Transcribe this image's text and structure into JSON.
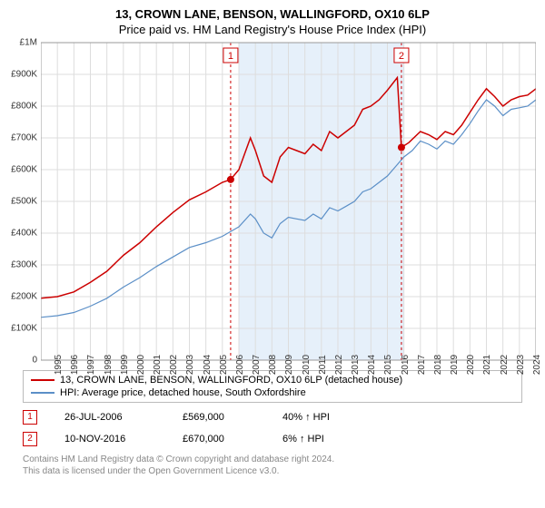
{
  "title_line1": "13, CROWN LANE, BENSON, WALLINGFORD, OX10 6LP",
  "title_line2": "Price paid vs. HM Land Registry's House Price Index (HPI)",
  "chart": {
    "type": "line",
    "background_color": "#ffffff",
    "grid_color": "#dddddd",
    "shade_color": "#e6f0fa",
    "shade_range_years": [
      2007,
      2017
    ],
    "xlim_years": [
      1995,
      2025
    ],
    "ylim": [
      0,
      1000000
    ],
    "ytick_step": 100000,
    "ytick_labels": [
      "0",
      "£100K",
      "£200K",
      "£300K",
      "£400K",
      "£500K",
      "£600K",
      "£700K",
      "£800K",
      "£900K",
      "£1M"
    ],
    "xtick_years": [
      1995,
      1996,
      1997,
      1998,
      1999,
      2000,
      2001,
      2002,
      2003,
      2004,
      2005,
      2006,
      2007,
      2008,
      2009,
      2010,
      2011,
      2012,
      2013,
      2014,
      2015,
      2016,
      2017,
      2018,
      2019,
      2020,
      2021,
      2022,
      2023,
      2024,
      2025
    ],
    "series": [
      {
        "name": "property",
        "label": "13, CROWN LANE, BENSON, WALLINGFORD, OX10 6LP (detached house)",
        "color": "#cc0000",
        "line_width": 1.5,
        "data": [
          [
            1995,
            195000
          ],
          [
            1996,
            200000
          ],
          [
            1997,
            215000
          ],
          [
            1998,
            245000
          ],
          [
            1999,
            280000
          ],
          [
            2000,
            330000
          ],
          [
            2001,
            370000
          ],
          [
            2002,
            420000
          ],
          [
            2003,
            465000
          ],
          [
            2004,
            505000
          ],
          [
            2005,
            530000
          ],
          [
            2006,
            560000
          ],
          [
            2006.5,
            569000
          ],
          [
            2007,
            600000
          ],
          [
            2007.7,
            700000
          ],
          [
            2008,
            660000
          ],
          [
            2008.5,
            580000
          ],
          [
            2009,
            560000
          ],
          [
            2009.5,
            640000
          ],
          [
            2010,
            670000
          ],
          [
            2010.5,
            660000
          ],
          [
            2011,
            650000
          ],
          [
            2011.5,
            680000
          ],
          [
            2012,
            660000
          ],
          [
            2012.5,
            720000
          ],
          [
            2013,
            700000
          ],
          [
            2013.5,
            720000
          ],
          [
            2014,
            740000
          ],
          [
            2014.5,
            790000
          ],
          [
            2015,
            800000
          ],
          [
            2015.5,
            820000
          ],
          [
            2016,
            850000
          ],
          [
            2016.6,
            890000
          ],
          [
            2016.85,
            670000
          ],
          [
            2017.3,
            685000
          ],
          [
            2018,
            720000
          ],
          [
            2018.5,
            710000
          ],
          [
            2019,
            695000
          ],
          [
            2019.5,
            720000
          ],
          [
            2020,
            710000
          ],
          [
            2020.5,
            740000
          ],
          [
            2021,
            780000
          ],
          [
            2021.5,
            820000
          ],
          [
            2022,
            855000
          ],
          [
            2022.5,
            830000
          ],
          [
            2023,
            800000
          ],
          [
            2023.5,
            820000
          ],
          [
            2024,
            830000
          ],
          [
            2024.5,
            835000
          ],
          [
            2025,
            855000
          ]
        ]
      },
      {
        "name": "hpi",
        "label": "HPI: Average price, detached house, South Oxfordshire",
        "color": "#5b8fc7",
        "line_width": 1.2,
        "data": [
          [
            1995,
            135000
          ],
          [
            1996,
            140000
          ],
          [
            1997,
            150000
          ],
          [
            1998,
            170000
          ],
          [
            1999,
            195000
          ],
          [
            2000,
            230000
          ],
          [
            2001,
            260000
          ],
          [
            2002,
            295000
          ],
          [
            2003,
            325000
          ],
          [
            2004,
            355000
          ],
          [
            2005,
            370000
          ],
          [
            2006,
            390000
          ],
          [
            2007,
            420000
          ],
          [
            2007.7,
            460000
          ],
          [
            2008,
            445000
          ],
          [
            2008.5,
            400000
          ],
          [
            2009,
            385000
          ],
          [
            2009.5,
            430000
          ],
          [
            2010,
            450000
          ],
          [
            2010.5,
            445000
          ],
          [
            2011,
            440000
          ],
          [
            2011.5,
            460000
          ],
          [
            2012,
            445000
          ],
          [
            2012.5,
            480000
          ],
          [
            2013,
            470000
          ],
          [
            2013.5,
            485000
          ],
          [
            2014,
            500000
          ],
          [
            2014.5,
            530000
          ],
          [
            2015,
            540000
          ],
          [
            2015.5,
            560000
          ],
          [
            2016,
            580000
          ],
          [
            2016.5,
            610000
          ],
          [
            2017,
            640000
          ],
          [
            2017.5,
            660000
          ],
          [
            2018,
            690000
          ],
          [
            2018.5,
            680000
          ],
          [
            2019,
            665000
          ],
          [
            2019.5,
            690000
          ],
          [
            2020,
            680000
          ],
          [
            2020.5,
            710000
          ],
          [
            2021,
            745000
          ],
          [
            2021.5,
            785000
          ],
          [
            2022,
            820000
          ],
          [
            2022.5,
            800000
          ],
          [
            2023,
            770000
          ],
          [
            2023.5,
            790000
          ],
          [
            2024,
            795000
          ],
          [
            2024.5,
            800000
          ],
          [
            2025,
            820000
          ]
        ]
      }
    ],
    "markers": [
      {
        "id": "1",
        "year": 2006.5,
        "value": 569000,
        "date_label": "26-JUL-2006",
        "price_label": "£569,000",
        "delta_label": "40% ↑ HPI",
        "border_color": "#cc0000",
        "dot_color": "#cc0000"
      },
      {
        "id": "2",
        "year": 2016.85,
        "value": 670000,
        "date_label": "10-NOV-2016",
        "price_label": "£670,000",
        "delta_label": "6% ↑ HPI",
        "border_color": "#cc0000",
        "dot_color": "#cc0000"
      }
    ]
  },
  "legend": {
    "title_fontsize": 11
  },
  "footer": {
    "line1": "Contains HM Land Registry data © Crown copyright and database right 2024.",
    "line2": "This data is licensed under the Open Government Licence v3.0."
  }
}
